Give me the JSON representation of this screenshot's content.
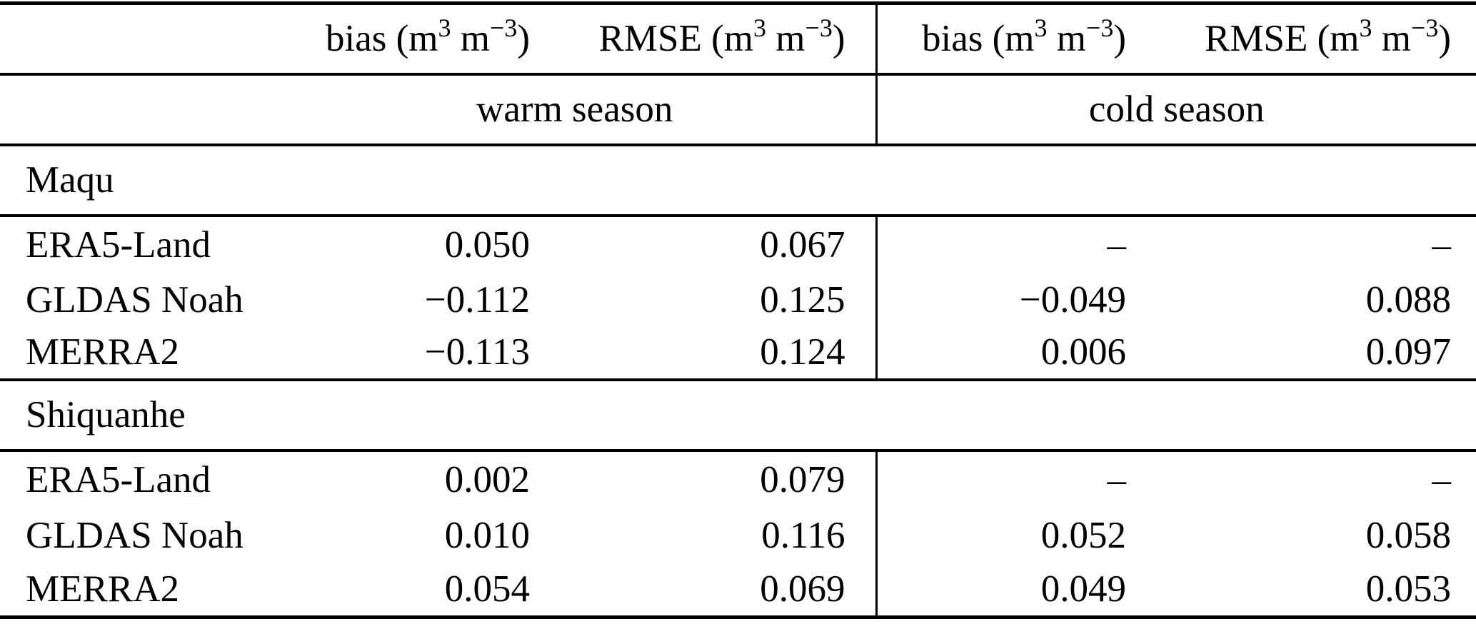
{
  "table": {
    "headers": {
      "corner": "",
      "bias": {
        "label": "bias",
        "unit_pre": " (m",
        "sup1": "3",
        "unit_mid": " m",
        "sup2": "−3",
        "unit_post": ")"
      },
      "rmse": {
        "label": "RMSE",
        "unit_pre": " (m",
        "sup1": "3",
        "unit_mid": " m",
        "sup2": "−3",
        "unit_post": ")"
      }
    },
    "season_groups": {
      "warm": "warm season",
      "cold": "cold season"
    },
    "sections": [
      {
        "name": "Maqu",
        "rows": [
          {
            "label": "ERA5-Land",
            "warm_bias": "0.050",
            "warm_rmse": "0.067",
            "cold_bias": "–",
            "cold_rmse": "–"
          },
          {
            "label": "GLDAS Noah",
            "warm_bias": "−0.112",
            "warm_rmse": "0.125",
            "cold_bias": "−0.049",
            "cold_rmse": "0.088"
          },
          {
            "label": "MERRA2",
            "warm_bias": "−0.113",
            "warm_rmse": "0.124",
            "cold_bias": "0.006",
            "cold_rmse": "0.097"
          }
        ]
      },
      {
        "name": "Shiquanhe",
        "rows": [
          {
            "label": "ERA5-Land",
            "warm_bias": "0.002",
            "warm_rmse": "0.079",
            "cold_bias": "–",
            "cold_rmse": "–"
          },
          {
            "label": "GLDAS Noah",
            "warm_bias": "0.010",
            "warm_rmse": "0.116",
            "cold_bias": "0.052",
            "cold_rmse": "0.058"
          },
          {
            "label": "MERRA2",
            "warm_bias": "0.054",
            "warm_rmse": "0.069",
            "cold_bias": "0.049",
            "cold_rmse": "0.053"
          }
        ]
      }
    ]
  }
}
